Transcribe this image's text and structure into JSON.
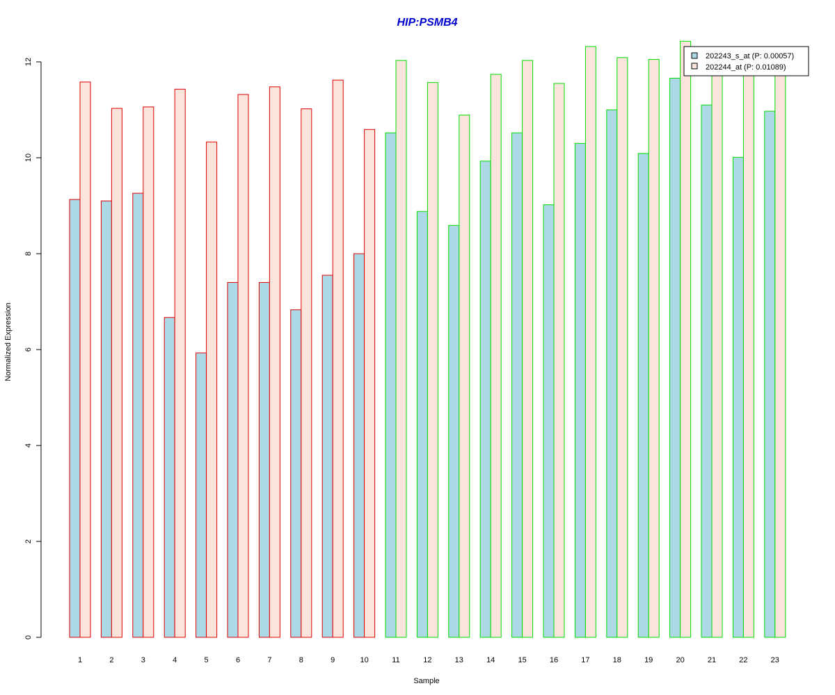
{
  "chart_data": {
    "type": "bar",
    "title": "HIP:PSMB4",
    "xlabel": "Sample",
    "ylabel": "Normalized Expression",
    "ylim": [
      0,
      12.4
    ],
    "yticks": [
      0,
      2,
      4,
      6,
      8,
      10,
      12
    ],
    "grid": false,
    "legend_position": "top-right",
    "categories": [
      "1",
      "2",
      "3",
      "4",
      "5",
      "6",
      "7",
      "8",
      "9",
      "10",
      "11",
      "12",
      "13",
      "14",
      "15",
      "16",
      "17",
      "18",
      "19",
      "20",
      "21",
      "22",
      "23"
    ],
    "groups": [
      {
        "samples": 10,
        "outline_color": "#dd0000"
      },
      {
        "samples": 13,
        "outline_color": "#00dd00"
      }
    ],
    "series": [
      {
        "name": "202243_s_at (P: 0.00057)",
        "fill": "#add8e6",
        "values": [
          9.13,
          9.1,
          9.26,
          6.67,
          5.93,
          7.4,
          7.4,
          6.83,
          7.55,
          8.0,
          10.52,
          8.88,
          8.59,
          9.93,
          10.52,
          9.02,
          10.3,
          11.0,
          10.09,
          11.66,
          11.1,
          10.01,
          10.97
        ]
      },
      {
        "name": "202244_at (P: 0.01089)",
        "fill": "#fbe4dc",
        "values": [
          11.58,
          11.03,
          11.06,
          11.43,
          10.33,
          11.32,
          11.48,
          11.02,
          11.62,
          10.59,
          12.03,
          11.57,
          10.89,
          11.74,
          12.03,
          11.55,
          12.32,
          12.09,
          12.05,
          12.43,
          11.74,
          11.74,
          11.74
        ]
      }
    ]
  }
}
